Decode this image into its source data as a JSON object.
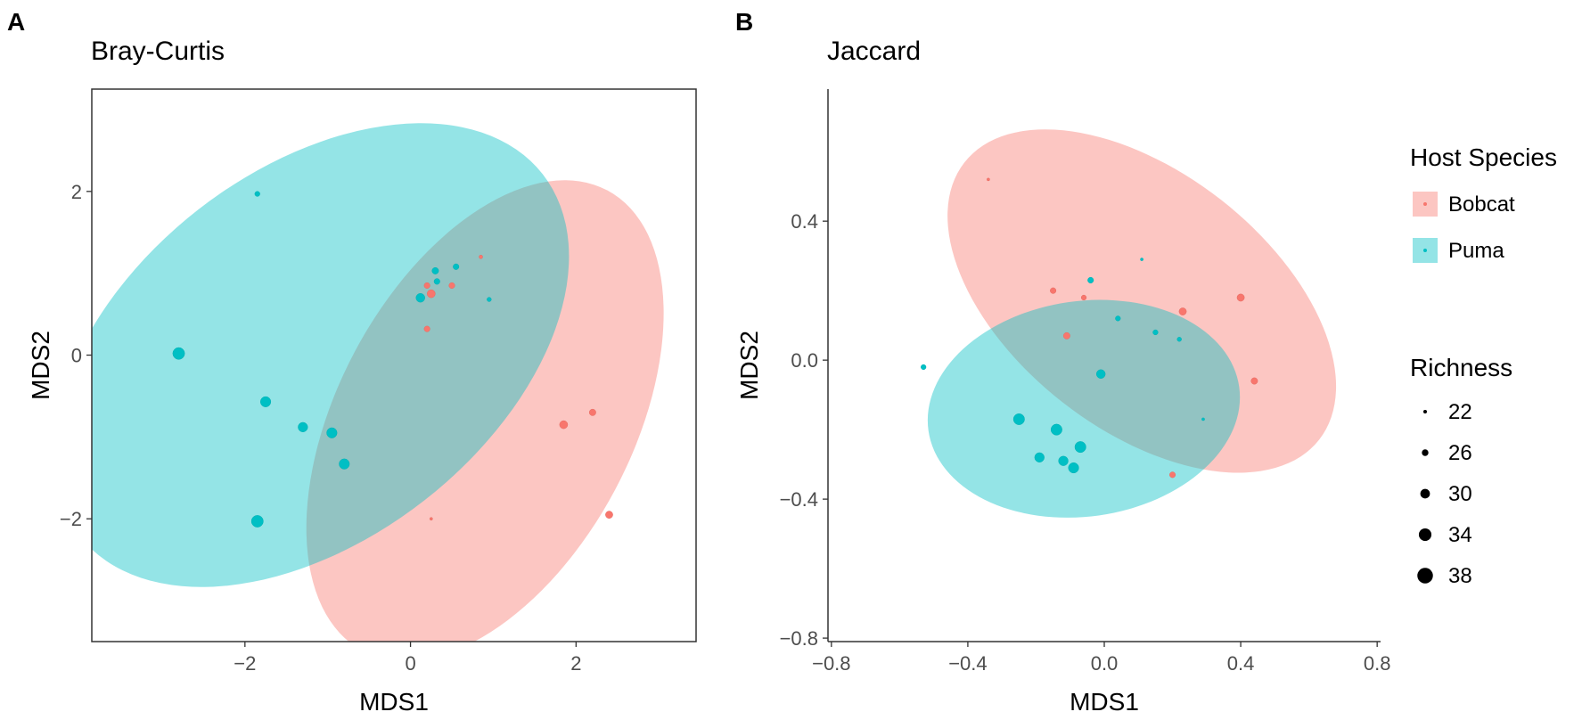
{
  "chart_data": [
    {
      "panel": "A",
      "type": "scatter",
      "title": "Bray-Curtis",
      "xlabel": "MDS1",
      "ylabel": "MDS2",
      "xlim": [
        -3.85,
        3.45
      ],
      "ylim": [
        -3.5,
        3.25
      ],
      "xticks": [
        -2,
        0,
        2
      ],
      "xtick_labels": [
        "−2",
        "0",
        "2"
      ],
      "yticks": [
        -2,
        0,
        2
      ],
      "ytick_labels": [
        "−2",
        "0",
        "2"
      ],
      "grid": false,
      "series": [
        {
          "name": "Bobcat",
          "color": "#F8766D",
          "ellipse": {
            "cx": 0.9,
            "cy": -0.8,
            "rx": 3.15,
            "ry": 1.8,
            "angle_deg": 62
          },
          "points": [
            {
              "x": 1.85,
              "y": -0.85,
              "richness": 28
            },
            {
              "x": 2.2,
              "y": -0.7,
              "richness": 26
            },
            {
              "x": 2.4,
              "y": -1.95,
              "richness": 27
            },
            {
              "x": 0.25,
              "y": -2.0,
              "richness": 21
            },
            {
              "x": 0.85,
              "y": 1.2,
              "richness": 22
            },
            {
              "x": 0.5,
              "y": 0.85,
              "richness": 25
            },
            {
              "x": 0.2,
              "y": 0.85,
              "richness": 25
            },
            {
              "x": 0.25,
              "y": 0.75,
              "richness": 28
            },
            {
              "x": 0.2,
              "y": 0.32,
              "richness": 25
            }
          ]
        },
        {
          "name": "Puma",
          "color": "#00BFC4",
          "ellipse": {
            "cx": -1.2,
            "cy": 0.0,
            "rx": 3.55,
            "ry": 2.25,
            "angle_deg": 38
          },
          "points": [
            {
              "x": -1.85,
              "y": 1.97,
              "richness": 24
            },
            {
              "x": -2.8,
              "y": 0.02,
              "richness": 33
            },
            {
              "x": -1.75,
              "y": -0.57,
              "richness": 31
            },
            {
              "x": -1.3,
              "y": -0.88,
              "richness": 30
            },
            {
              "x": -0.95,
              "y": -0.95,
              "richness": 31
            },
            {
              "x": -0.8,
              "y": -1.33,
              "richness": 31
            },
            {
              "x": -1.85,
              "y": -2.03,
              "richness": 33
            },
            {
              "x": 0.3,
              "y": 1.03,
              "richness": 26
            },
            {
              "x": 0.55,
              "y": 1.08,
              "richness": 25
            },
            {
              "x": 0.32,
              "y": 0.9,
              "richness": 25
            },
            {
              "x": 0.12,
              "y": 0.7,
              "richness": 29
            },
            {
              "x": 0.95,
              "y": 0.68,
              "richness": 23
            }
          ]
        }
      ]
    },
    {
      "panel": "B",
      "type": "scatter",
      "title": "Jaccard",
      "xlabel": "MDS1",
      "ylabel": "MDS2",
      "xlim": [
        -0.81,
        0.81
      ],
      "ylim": [
        -0.81,
        0.78
      ],
      "xticks": [
        -0.8,
        -0.4,
        0.0,
        0.4,
        0.8
      ],
      "xtick_labels": [
        "−0.8",
        "−0.4",
        "0.0",
        "0.4",
        "0.8"
      ],
      "yticks": [
        -0.8,
        -0.4,
        0.0,
        0.4
      ],
      "ytick_labels": [
        "−0.8",
        "−0.4",
        "0.0",
        "0.4"
      ],
      "grid": false,
      "series": [
        {
          "name": "Bobcat",
          "color": "#F8766D",
          "ellipse": {
            "cx": 0.11,
            "cy": 0.17,
            "rx": 0.66,
            "ry": 0.37,
            "angle_deg": -38
          },
          "points": [
            {
              "x": -0.34,
              "y": 0.52,
              "richness": 21
            },
            {
              "x": -0.15,
              "y": 0.2,
              "richness": 25
            },
            {
              "x": -0.06,
              "y": 0.18,
              "richness": 24
            },
            {
              "x": -0.11,
              "y": 0.07,
              "richness": 26
            },
            {
              "x": 0.23,
              "y": 0.14,
              "richness": 27
            },
            {
              "x": 0.4,
              "y": 0.18,
              "richness": 27
            },
            {
              "x": 0.44,
              "y": -0.06,
              "richness": 26
            },
            {
              "x": 0.2,
              "y": -0.33,
              "richness": 25
            }
          ]
        },
        {
          "name": "Puma",
          "color": "#00BFC4",
          "ellipse": {
            "cx": -0.06,
            "cy": -0.14,
            "rx": 0.46,
            "ry": 0.31,
            "angle_deg": 8
          },
          "points": [
            {
              "x": -0.53,
              "y": -0.02,
              "richness": 24
            },
            {
              "x": -0.04,
              "y": 0.23,
              "richness": 25
            },
            {
              "x": 0.11,
              "y": 0.29,
              "richness": 21
            },
            {
              "x": 0.04,
              "y": 0.12,
              "richness": 24
            },
            {
              "x": 0.15,
              "y": 0.08,
              "richness": 24
            },
            {
              "x": 0.22,
              "y": 0.06,
              "richness": 23
            },
            {
              "x": -0.01,
              "y": -0.04,
              "richness": 29
            },
            {
              "x": 0.29,
              "y": -0.17,
              "richness": 21
            },
            {
              "x": -0.25,
              "y": -0.17,
              "richness": 32
            },
            {
              "x": -0.14,
              "y": -0.2,
              "richness": 32
            },
            {
              "x": -0.19,
              "y": -0.28,
              "richness": 30
            },
            {
              "x": -0.12,
              "y": -0.29,
              "richness": 30
            },
            {
              "x": -0.09,
              "y": -0.31,
              "richness": 31
            },
            {
              "x": -0.07,
              "y": -0.25,
              "richness": 32
            }
          ]
        }
      ]
    }
  ],
  "legend": {
    "host_species": {
      "title": "Host Species",
      "items": [
        {
          "label": "Bobcat",
          "color": "#F8766D"
        },
        {
          "label": "Puma",
          "color": "#00BFC4"
        }
      ]
    },
    "richness": {
      "title": "Richness",
      "items": [
        {
          "label": "22",
          "value": 22
        },
        {
          "label": "26",
          "value": 26
        },
        {
          "label": "30",
          "value": 30
        },
        {
          "label": "34",
          "value": 34
        },
        {
          "label": "38",
          "value": 38
        }
      ]
    }
  }
}
